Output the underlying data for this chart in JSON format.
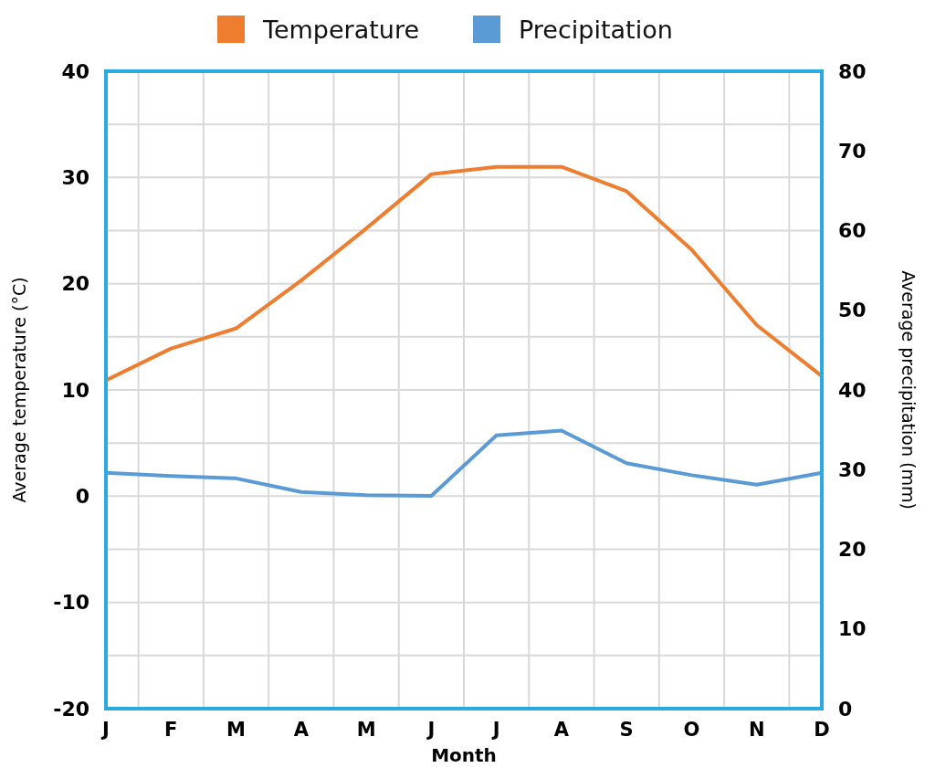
{
  "chart_data": {
    "type": "line",
    "xlabel": "Month",
    "ylabel": "Average temperature (°C)",
    "y2label": "Average precipitation (mm)",
    "categories": [
      "J",
      "F",
      "M",
      "A",
      "M",
      "J",
      "J",
      "A",
      "S",
      "O",
      "N",
      "D"
    ],
    "series": [
      {
        "name": "Temperature",
        "color": "#ee7d30",
        "values": [
          10.9,
          13.9,
          15.8,
          20.3,
          25.2,
          30.3,
          31.0,
          31.0,
          28.7,
          23.2,
          16.1,
          11.3
        ]
      },
      {
        "name": "Precipitation",
        "color": "#5b9bd5",
        "axis": "y2",
        "values": [
          29.6,
          29.2,
          28.9,
          27.2,
          26.8,
          26.7,
          34.3,
          34.9,
          30.8,
          29.3,
          28.1,
          29.6
        ]
      }
    ],
    "ylim": [
      -20,
      40
    ],
    "yticks": [
      -20,
      {
        "value": -15,
        "label": null
      },
      -10,
      {
        "value": -5,
        "label": null
      },
      0,
      {
        "value": 5,
        "label": null
      },
      10,
      {
        "value": 15,
        "label": null
      },
      20,
      {
        "value": 25,
        "label": null
      },
      30,
      {
        "value": 35,
        "label": null
      },
      40
    ],
    "y2lim": [
      0,
      80
    ],
    "y2ticks": [
      0,
      10,
      20,
      30,
      40,
      50,
      60,
      70,
      80
    ],
    "grid": true,
    "legend": "top",
    "marker": "none",
    "line_style": "solid"
  }
}
